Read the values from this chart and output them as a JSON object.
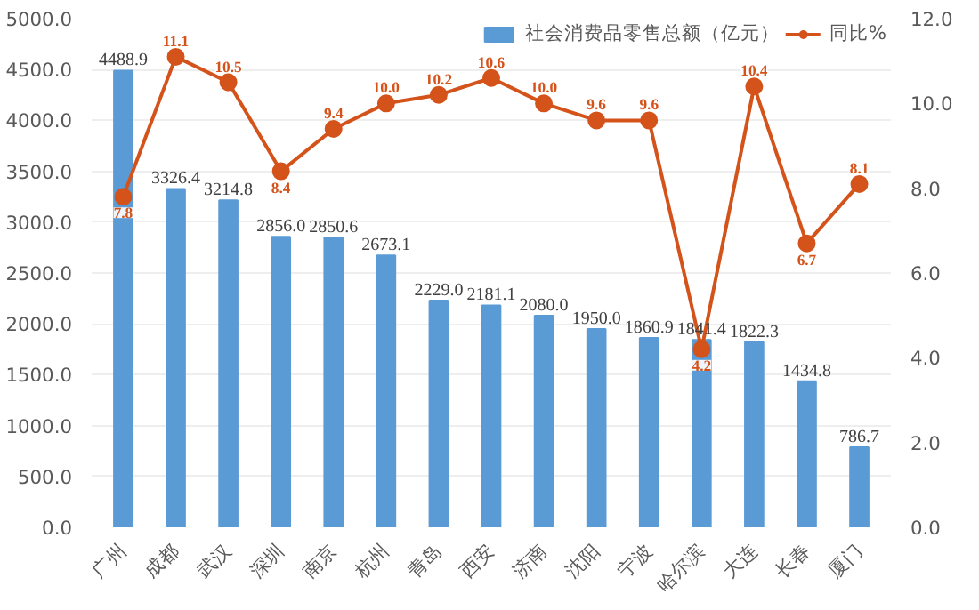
{
  "chart_data": {
    "type": "bar",
    "categories": [
      "广州",
      "成都",
      "武汉",
      "深圳",
      "南京",
      "杭州",
      "青岛",
      "西安",
      "济南",
      "沈阳",
      "宁波",
      "哈尔滨",
      "大连",
      "长春",
      "厦门"
    ],
    "series": [
      {
        "name": "社会消费品零售总额（亿元）",
        "color": "#5b9bd5",
        "values": [
          4488.9,
          3326.4,
          3214.8,
          2856.0,
          2850.6,
          2673.1,
          2229.0,
          2181.1,
          2080.0,
          1950.0,
          1860.9,
          1841.4,
          1822.3,
          1434.8,
          786.7
        ],
        "value_labels": [
          "4488.9",
          "3326.4",
          "3214.8",
          "2856.0",
          "2850.6",
          "2673.1",
          "2229.0",
          "2181.1",
          "2080.0",
          "1950.0",
          "1860.9",
          "1841.4",
          "1822.3",
          "1434.8",
          "786.7"
        ]
      },
      {
        "name": "同比%",
        "type": "line",
        "axis": "y2",
        "color": "#d4531b",
        "marker": "circle",
        "values": [
          7.8,
          11.1,
          10.5,
          8.4,
          9.4,
          10.0,
          10.2,
          10.6,
          10.0,
          9.6,
          9.6,
          4.2,
          10.4,
          6.7,
          8.1
        ],
        "value_labels": [
          "7.8",
          "11.1",
          "10.5",
          "8.4",
          "9.4",
          "10.0",
          "10.2",
          "10.6",
          "10.0",
          "9.6",
          "9.6",
          "4.2",
          "10.4",
          "6.7",
          "8.1"
        ]
      }
    ],
    "ylim": [
      0,
      5000
    ],
    "yticks": [
      {
        "value": 0,
        "label": "0.0"
      },
      {
        "value": 500,
        "label": "500.0"
      },
      {
        "value": 1000,
        "label": "1000.0"
      },
      {
        "value": 1500,
        "label": "1500.0"
      },
      {
        "value": 2000,
        "label": "2000.0"
      },
      {
        "value": 2500,
        "label": "2500.0"
      },
      {
        "value": 3000,
        "label": "3000.0"
      },
      {
        "value": 3500,
        "label": "3500.0"
      },
      {
        "value": 4000,
        "label": "4000.0"
      },
      {
        "value": 4500,
        "label": "4500.0"
      },
      {
        "value": 5000,
        "label": "5000.0"
      }
    ],
    "y2lim": [
      0,
      12
    ],
    "y2ticks": [
      {
        "value": 0,
        "label": "0.0"
      },
      {
        "value": 2,
        "label": "2.0"
      },
      {
        "value": 4,
        "label": "4.0"
      },
      {
        "value": 6,
        "label": "6.0"
      },
      {
        "value": 8,
        "label": "8.0"
      },
      {
        "value": 10,
        "label": "10.0"
      },
      {
        "value": 12,
        "label": "12.0"
      }
    ],
    "grid": "y",
    "legend": "top right"
  }
}
